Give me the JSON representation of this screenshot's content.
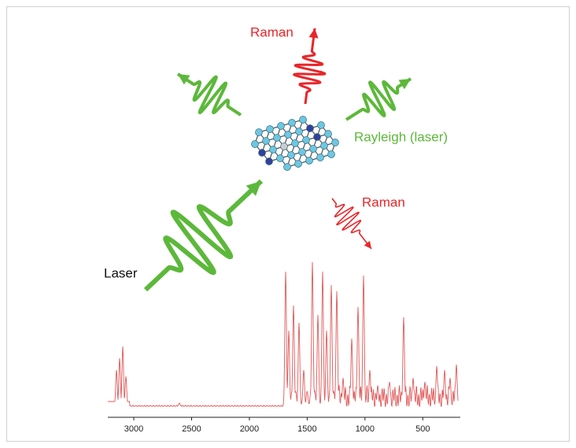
{
  "labels": {
    "raman_top": "Raman",
    "rayleigh": "Rayleigh (laser)",
    "raman_right": "Raman",
    "laser": "Laser"
  },
  "spectrum": {
    "xlim": [
      3225,
      175
    ],
    "xticks": [
      3000,
      2500,
      2000,
      1500,
      1000,
      500
    ]
  }
}
